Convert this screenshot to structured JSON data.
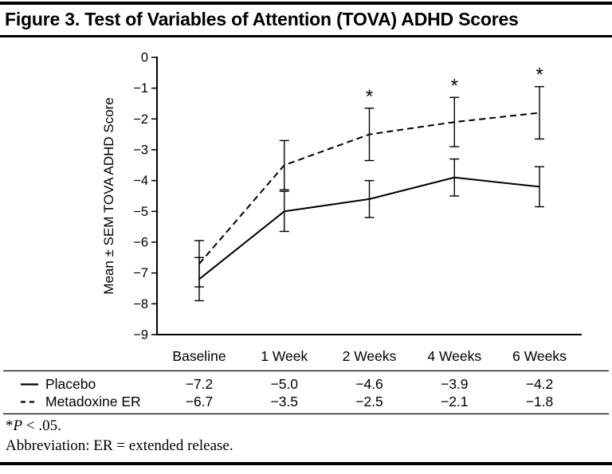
{
  "figure": {
    "title": "Figure 3. Test of Variables of Attention (TOVA) ADHD Scores",
    "footnote_significance": {
      "star": "*",
      "p": "P",
      "rest": " < .05."
    },
    "footnote_abbreviation": "Abbreviation: ER = extended release."
  },
  "chart_data": {
    "type": "line",
    "title": "Figure 3. Test of Variables of Attention (TOVA) ADHD Scores",
    "categories": [
      "Baseline",
      "1 Week",
      "2 Weeks",
      "4 Weeks",
      "6 Weeks"
    ],
    "series": [
      {
        "name": "Placebo",
        "line_style": "solid",
        "values": [
          -7.2,
          -5.0,
          -4.6,
          -3.9,
          -4.2
        ],
        "sem": [
          0.7,
          0.65,
          0.6,
          0.6,
          0.65
        ]
      },
      {
        "name": "Metadoxine ER",
        "line_style": "dashed",
        "values": [
          -6.7,
          -3.5,
          -2.5,
          -2.1,
          -1.8
        ],
        "sem": [
          0.75,
          0.8,
          0.85,
          0.8,
          0.85
        ]
      }
    ],
    "significance": {
      "symbol": "*",
      "series_index": 1,
      "category_indices": [
        2,
        3,
        4
      ],
      "note": "*P < .05."
    },
    "xlabel": "",
    "ylabel": "Mean ± SEM TOVA ADHD Score",
    "ylim": [
      -9,
      0
    ],
    "ytick_step": 1,
    "grid": false,
    "legend_position": "table rows below chart, left side",
    "error_bars": "SEM, capped, both directions",
    "colors": {
      "line": "#000000",
      "text": "#000000",
      "background": "#ffffff"
    }
  }
}
